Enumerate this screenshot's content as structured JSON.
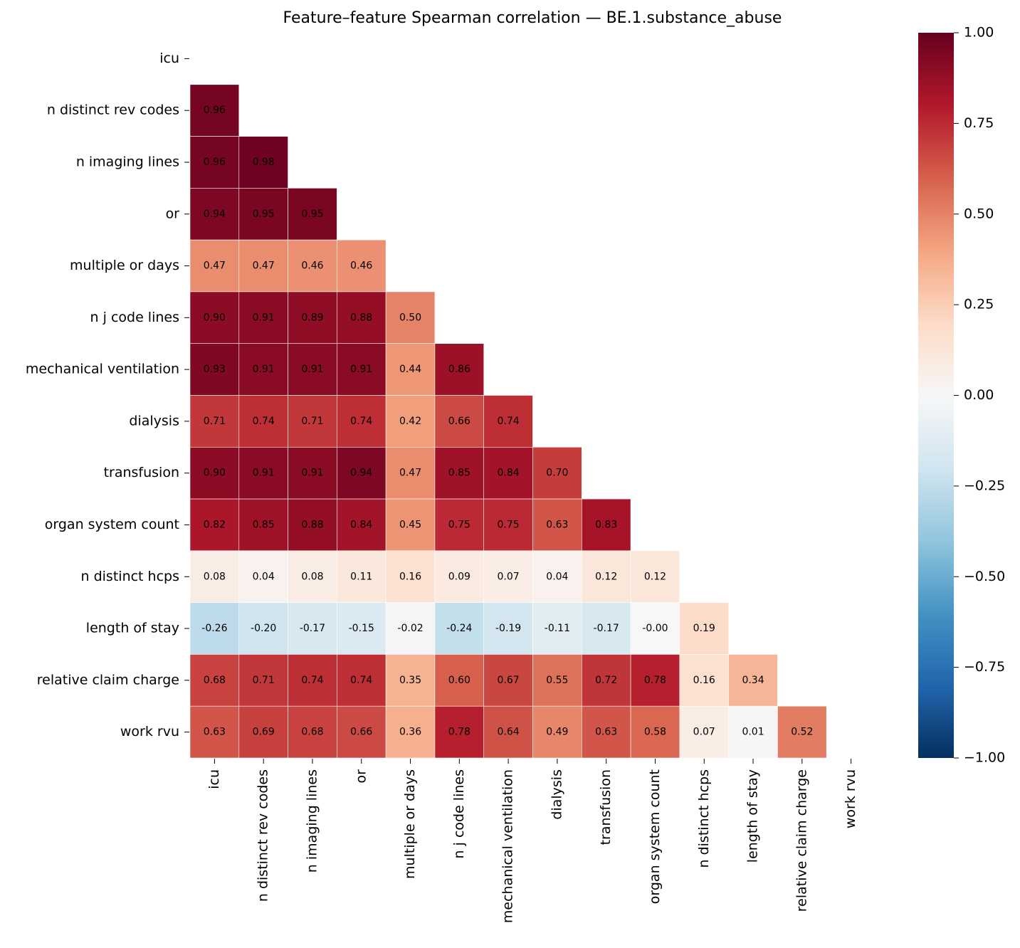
{
  "chart_data": {
    "type": "heatmap",
    "title": "Feature–feature Spearman correlation — BE.1.substance_abuse",
    "categories": [
      "icu",
      "n distinct rev codes",
      "n imaging lines",
      "or",
      "multiple or days",
      "n j code lines",
      "mechanical ventilation",
      "dialysis",
      "transfusion",
      "organ system count",
      "n distinct hcps",
      "length of stay",
      "relative claim charge",
      "work rvu"
    ],
    "values": [
      [
        null,
        null,
        null,
        null,
        null,
        null,
        null,
        null,
        null,
        null,
        null,
        null,
        null,
        null
      ],
      [
        0.96,
        null,
        null,
        null,
        null,
        null,
        null,
        null,
        null,
        null,
        null,
        null,
        null,
        null
      ],
      [
        0.96,
        0.98,
        null,
        null,
        null,
        null,
        null,
        null,
        null,
        null,
        null,
        null,
        null,
        null
      ],
      [
        0.94,
        0.95,
        0.95,
        null,
        null,
        null,
        null,
        null,
        null,
        null,
        null,
        null,
        null,
        null
      ],
      [
        0.47,
        0.47,
        0.46,
        0.46,
        null,
        null,
        null,
        null,
        null,
        null,
        null,
        null,
        null,
        null
      ],
      [
        0.9,
        0.91,
        0.89,
        0.88,
        0.5,
        null,
        null,
        null,
        null,
        null,
        null,
        null,
        null,
        null
      ],
      [
        0.93,
        0.91,
        0.91,
        0.91,
        0.44,
        0.86,
        null,
        null,
        null,
        null,
        null,
        null,
        null,
        null
      ],
      [
        0.71,
        0.74,
        0.71,
        0.74,
        0.42,
        0.66,
        0.74,
        null,
        null,
        null,
        null,
        null,
        null,
        null
      ],
      [
        0.9,
        0.91,
        0.91,
        0.94,
        0.47,
        0.85,
        0.84,
        0.7,
        null,
        null,
        null,
        null,
        null,
        null
      ],
      [
        0.82,
        0.85,
        0.88,
        0.84,
        0.45,
        0.75,
        0.75,
        0.63,
        0.83,
        null,
        null,
        null,
        null,
        null
      ],
      [
        0.08,
        0.04,
        0.08,
        0.11,
        0.16,
        0.09,
        0.07,
        0.04,
        0.12,
        0.12,
        null,
        null,
        null,
        null
      ],
      [
        -0.26,
        -0.2,
        -0.17,
        -0.15,
        -0.02,
        -0.24,
        -0.19,
        -0.11,
        -0.17,
        0,
        0.19,
        null,
        null,
        null
      ],
      [
        0.68,
        0.71,
        0.74,
        0.74,
        0.35,
        0.6,
        0.67,
        0.55,
        0.72,
        0.78,
        0.16,
        0.34,
        null,
        null
      ],
      [
        0.63,
        0.69,
        0.68,
        0.66,
        0.36,
        0.78,
        0.64,
        0.49,
        0.63,
        0.58,
        0.07,
        0.01,
        0.52,
        null
      ]
    ],
    "value_labels": [
      [
        null,
        null,
        null,
        null,
        null,
        null,
        null,
        null,
        null,
        null,
        null,
        null,
        null,
        null
      ],
      [
        "0.96",
        null,
        null,
        null,
        null,
        null,
        null,
        null,
        null,
        null,
        null,
        null,
        null,
        null
      ],
      [
        "0.96",
        "0.98",
        null,
        null,
        null,
        null,
        null,
        null,
        null,
        null,
        null,
        null,
        null,
        null
      ],
      [
        "0.94",
        "0.95",
        "0.95",
        null,
        null,
        null,
        null,
        null,
        null,
        null,
        null,
        null,
        null,
        null
      ],
      [
        "0.47",
        "0.47",
        "0.46",
        "0.46",
        null,
        null,
        null,
        null,
        null,
        null,
        null,
        null,
        null,
        null
      ],
      [
        "0.90",
        "0.91",
        "0.89",
        "0.88",
        "0.50",
        null,
        null,
        null,
        null,
        null,
        null,
        null,
        null,
        null
      ],
      [
        "0.93",
        "0.91",
        "0.91",
        "0.91",
        "0.44",
        "0.86",
        null,
        null,
        null,
        null,
        null,
        null,
        null,
        null
      ],
      [
        "0.71",
        "0.74",
        "0.71",
        "0.74",
        "0.42",
        "0.66",
        "0.74",
        null,
        null,
        null,
        null,
        null,
        null,
        null
      ],
      [
        "0.90",
        "0.91",
        "0.91",
        "0.94",
        "0.47",
        "0.85",
        "0.84",
        "0.70",
        null,
        null,
        null,
        null,
        null,
        null
      ],
      [
        "0.82",
        "0.85",
        "0.88",
        "0.84",
        "0.45",
        "0.75",
        "0.75",
        "0.63",
        "0.83",
        null,
        null,
        null,
        null,
        null
      ],
      [
        "0.08",
        "0.04",
        "0.08",
        "0.11",
        "0.16",
        "0.09",
        "0.07",
        "0.04",
        "0.12",
        "0.12",
        null,
        null,
        null,
        null
      ],
      [
        "-0.26",
        "-0.20",
        "-0.17",
        "-0.15",
        "-0.02",
        "-0.24",
        "-0.19",
        "-0.11",
        "-0.17",
        "-0.00",
        "0.19",
        null,
        null,
        null
      ],
      [
        "0.68",
        "0.71",
        "0.74",
        "0.74",
        "0.35",
        "0.60",
        "0.67",
        "0.55",
        "0.72",
        "0.78",
        "0.16",
        "0.34",
        null,
        null
      ],
      [
        "0.63",
        "0.69",
        "0.68",
        "0.66",
        "0.36",
        "0.78",
        "0.64",
        "0.49",
        "0.63",
        "0.58",
        "0.07",
        "0.01",
        "0.52",
        null
      ]
    ],
    "colormap": "RdBu_r",
    "zlim": [
      -1,
      1
    ],
    "zticks": [
      {
        "value": 1,
        "label": "1.00"
      },
      {
        "value": 0.75,
        "label": "0.75"
      },
      {
        "value": 0.5,
        "label": "0.50"
      },
      {
        "value": 0.25,
        "label": "0.25"
      },
      {
        "value": 0,
        "label": "0.00"
      },
      {
        "value": -0.25,
        "label": "−0.25"
      },
      {
        "value": -0.5,
        "label": "−0.50"
      },
      {
        "value": -0.75,
        "label": "−0.75"
      },
      {
        "value": -1,
        "label": "−1.00"
      }
    ]
  }
}
